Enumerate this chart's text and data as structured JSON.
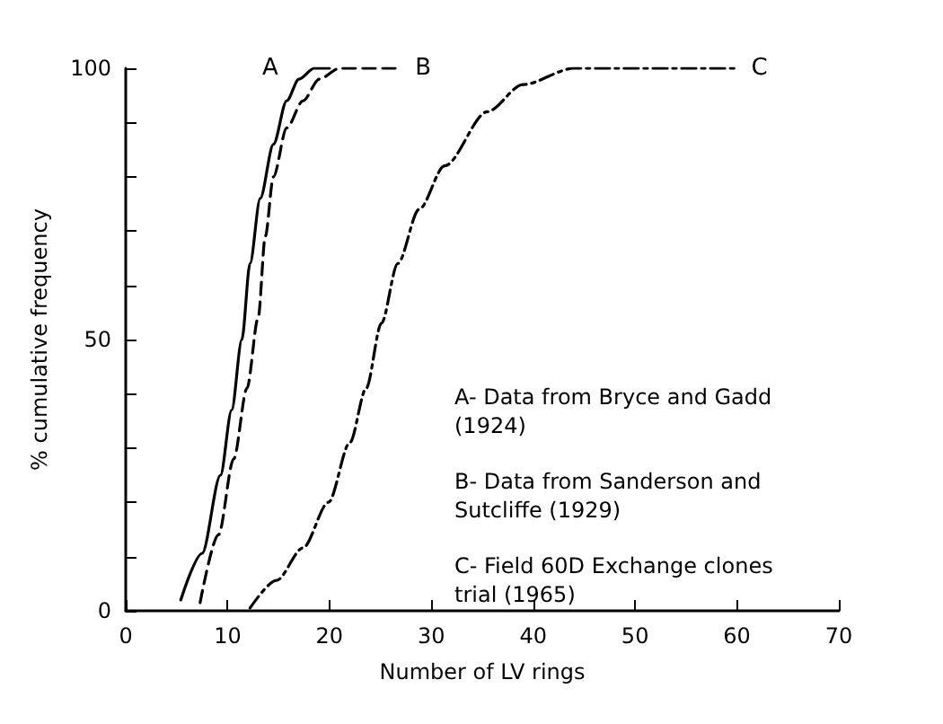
{
  "chart_data": {
    "type": "line",
    "xlabel": "Number of LV rings",
    "ylabel": "% cumulative frequency",
    "xlim": [
      0,
      70
    ],
    "ylim": [
      0,
      100
    ],
    "xticks": [
      0,
      10,
      20,
      30,
      40,
      50,
      60,
      70
    ],
    "yticks": [
      0,
      {
        "value": 10,
        "label": null
      },
      {
        "value": 20,
        "label": null
      },
      {
        "value": 30,
        "label": null
      },
      {
        "value": 40,
        "label": null
      },
      50,
      {
        "value": 60,
        "label": null
      },
      {
        "value": 70,
        "label": null
      },
      {
        "value": 80,
        "label": null
      },
      {
        "value": 90,
        "label": null
      },
      100
    ],
    "grid": false,
    "marker": "none",
    "series": [
      {
        "name": "A",
        "color": "#000000",
        "line_style": "solid",
        "x": [
          5.4,
          7.5,
          9.3,
          10.4,
          11.4,
          12.2,
          13.2,
          14.5,
          15.8,
          17,
          18.5,
          20
        ],
        "values": [
          2,
          10.6,
          25,
          37,
          50,
          64,
          76,
          86,
          94,
          98,
          100,
          100
        ]
      },
      {
        "name": "B",
        "color": "#000000",
        "line_style": "dashed",
        "x": [
          7.3,
          9.1,
          10.6,
          11.9,
          13,
          13.7,
          14.5,
          15.8,
          17.4,
          19,
          21,
          27
        ],
        "values": [
          1.5,
          14,
          28,
          41,
          54,
          69,
          80,
          89,
          94,
          98,
          100,
          100
        ]
      },
      {
        "name": "C",
        "color": "#000000",
        "line_style": "dashdot",
        "x": [
          12.2,
          14.8,
          17.4,
          19.9,
          22,
          23.6,
          25.1,
          26.7,
          28.8,
          31.3,
          35.5,
          39,
          44,
          60
        ],
        "values": [
          0.5,
          5.6,
          11.6,
          20,
          31,
          41,
          53,
          64,
          74,
          82,
          92,
          97,
          100,
          100
        ]
      }
    ],
    "annotations": [
      "A- Data from Bryce and Gadd (1924)",
      "B- Data from Sanderson and Sutcliffe (1929)",
      "C- Field 60D Exchange clones trial (1965)"
    ]
  }
}
